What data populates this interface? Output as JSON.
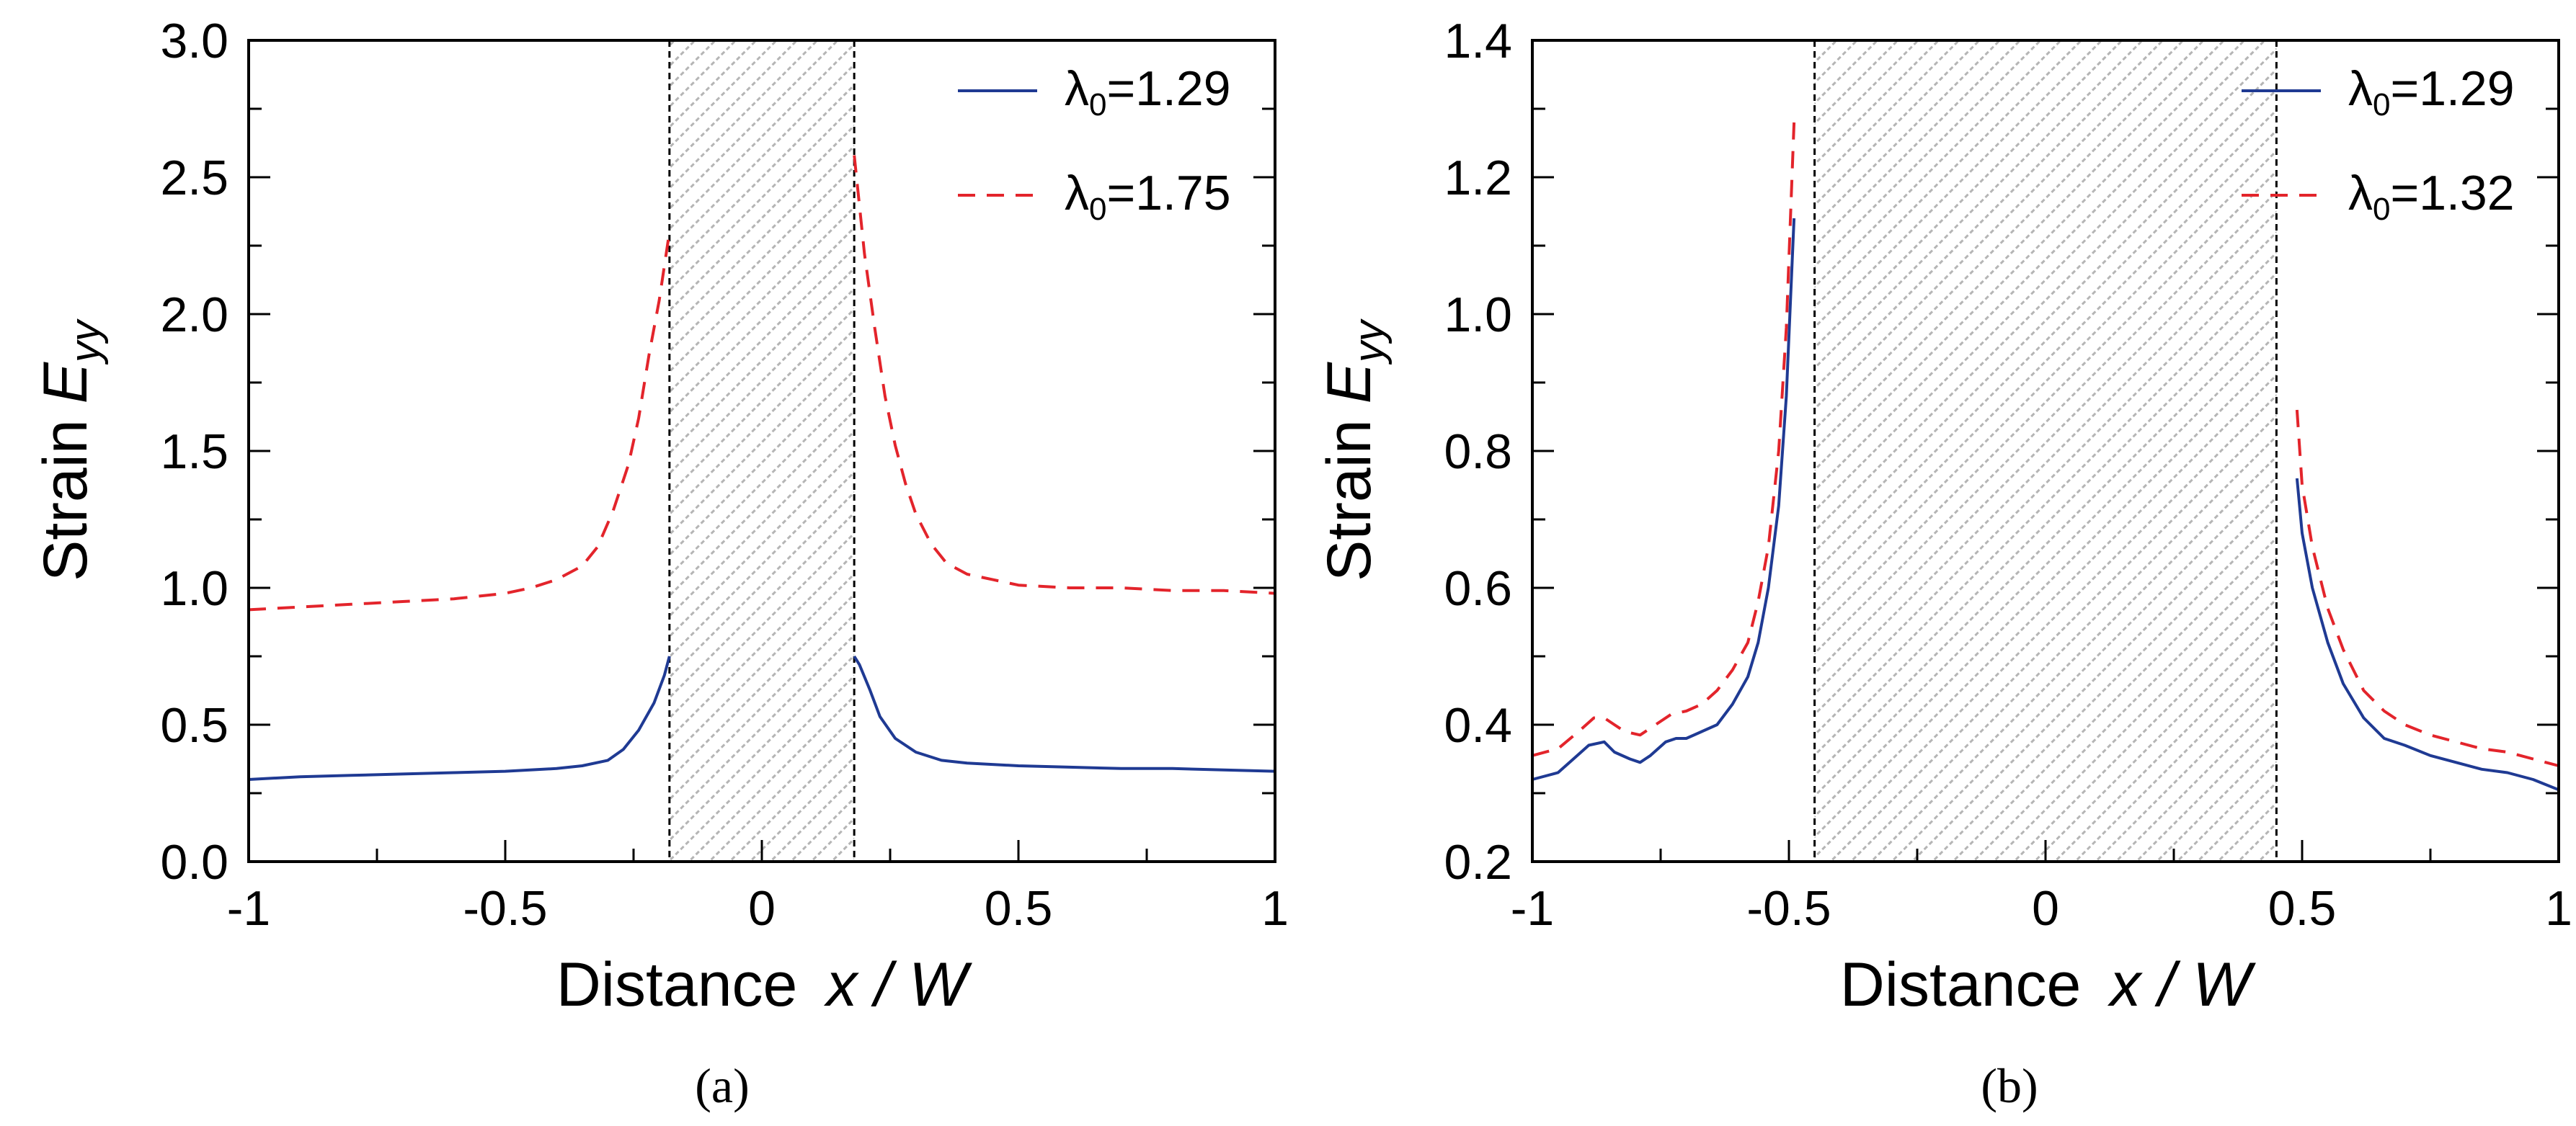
{
  "chart_data": [
    {
      "type": "line",
      "panel_label": "(a)",
      "xlabel": "Distance",
      "xlabel_var": "x / W",
      "ylabel": "Strain",
      "ylabel_var": "E",
      "ylabel_sub": "yy",
      "xlim": [
        -1,
        1
      ],
      "ylim": [
        0,
        3
      ],
      "x_ticks": [
        -1,
        -0.5,
        0,
        0.5,
        1
      ],
      "x_tick_labels": [
        "-1",
        "-0.5",
        "0",
        "0.5",
        "1"
      ],
      "y_ticks": [
        0,
        0.5,
        1,
        1.5,
        2,
        2.5,
        3
      ],
      "y_tick_labels": [
        "0.0",
        "0.5",
        "1.0",
        "1.5",
        "2.0",
        "2.5",
        "3.0"
      ],
      "shaded_region": [
        -0.18,
        0.18
      ],
      "legend_position": "top-right",
      "series": [
        {
          "name": "λ0=1.29",
          "legend_symbol": "λ",
          "legend_sub": "0",
          "legend_value": "=1.29",
          "color": "#1f3a93",
          "style": "solid",
          "segments": [
            [
              [
                -1.0,
                0.3
              ],
              [
                -0.9,
                0.31
              ],
              [
                -0.8,
                0.315
              ],
              [
                -0.7,
                0.32
              ],
              [
                -0.6,
                0.325
              ],
              [
                -0.5,
                0.33
              ],
              [
                -0.4,
                0.34
              ],
              [
                -0.35,
                0.35
              ],
              [
                -0.3,
                0.37
              ],
              [
                -0.27,
                0.41
              ],
              [
                -0.24,
                0.48
              ],
              [
                -0.21,
                0.58
              ],
              [
                -0.19,
                0.68
              ],
              [
                -0.18,
                0.75
              ]
            ],
            [
              [
                0.18,
                0.75
              ],
              [
                0.19,
                0.72
              ],
              [
                0.21,
                0.63
              ],
              [
                0.23,
                0.53
              ],
              [
                0.26,
                0.45
              ],
              [
                0.3,
                0.4
              ],
              [
                0.35,
                0.37
              ],
              [
                0.4,
                0.36
              ],
              [
                0.5,
                0.35
              ],
              [
                0.6,
                0.345
              ],
              [
                0.7,
                0.34
              ],
              [
                0.8,
                0.34
              ],
              [
                0.9,
                0.335
              ],
              [
                1.0,
                0.33
              ]
            ]
          ]
        },
        {
          "name": "λ0=1.75",
          "legend_symbol": "λ",
          "legend_sub": "0",
          "legend_value": "=1.75",
          "color": "#e3242b",
          "style": "dashed",
          "segments": [
            [
              [
                -1.0,
                0.92
              ],
              [
                -0.9,
                0.93
              ],
              [
                -0.8,
                0.94
              ],
              [
                -0.7,
                0.95
              ],
              [
                -0.6,
                0.96
              ],
              [
                -0.5,
                0.98
              ],
              [
                -0.45,
                1.0
              ],
              [
                -0.4,
                1.03
              ],
              [
                -0.35,
                1.08
              ],
              [
                -0.32,
                1.15
              ],
              [
                -0.29,
                1.28
              ],
              [
                -0.26,
                1.45
              ],
              [
                -0.24,
                1.62
              ],
              [
                -0.22,
                1.85
              ],
              [
                -0.2,
                2.05
              ],
              [
                -0.18,
                2.3
              ]
            ],
            [
              [
                0.18,
                2.58
              ],
              [
                0.19,
                2.4
              ],
              [
                0.2,
                2.22
              ],
              [
                0.22,
                1.95
              ],
              [
                0.24,
                1.7
              ],
              [
                0.26,
                1.52
              ],
              [
                0.28,
                1.38
              ],
              [
                0.3,
                1.27
              ],
              [
                0.33,
                1.16
              ],
              [
                0.36,
                1.09
              ],
              [
                0.4,
                1.05
              ],
              [
                0.45,
                1.03
              ],
              [
                0.5,
                1.01
              ],
              [
                0.6,
                1.0
              ],
              [
                0.7,
                1.0
              ],
              [
                0.8,
                0.99
              ],
              [
                0.9,
                0.99
              ],
              [
                1.0,
                0.98
              ]
            ]
          ]
        }
      ]
    },
    {
      "type": "line",
      "panel_label": "(b)",
      "xlabel": "Distance",
      "xlabel_var": "x / W",
      "ylabel": "Strain",
      "ylabel_var": "E",
      "ylabel_sub": "yy",
      "xlim": [
        -1,
        1
      ],
      "ylim": [
        0.2,
        1.4
      ],
      "x_ticks": [
        -1,
        -0.5,
        0,
        0.5,
        1
      ],
      "x_tick_labels": [
        "-1",
        "-0.5",
        "0",
        "0.5",
        "1"
      ],
      "y_ticks": [
        0.2,
        0.4,
        0.6,
        0.8,
        1.0,
        1.2,
        1.4
      ],
      "y_tick_labels": [
        "0.2",
        "0.4",
        "0.6",
        "0.8",
        "1.0",
        "1.2",
        "1.4"
      ],
      "shaded_region": [
        -0.45,
        0.45
      ],
      "legend_position": "top-right",
      "series": [
        {
          "name": "λ0=1.29",
          "legend_symbol": "λ",
          "legend_sub": "0",
          "legend_value": "=1.29",
          "color": "#1f3a93",
          "style": "solid",
          "segments": [
            [
              [
                -1.0,
                0.32
              ],
              [
                -0.95,
                0.33
              ],
              [
                -0.92,
                0.35
              ],
              [
                -0.89,
                0.37
              ],
              [
                -0.86,
                0.375
              ],
              [
                -0.84,
                0.36
              ],
              [
                -0.81,
                0.35
              ],
              [
                -0.79,
                0.345
              ],
              [
                -0.77,
                0.355
              ],
              [
                -0.74,
                0.375
              ],
              [
                -0.72,
                0.38
              ],
              [
                -0.7,
                0.38
              ],
              [
                -0.67,
                0.39
              ],
              [
                -0.64,
                0.4
              ],
              [
                -0.61,
                0.43
              ],
              [
                -0.58,
                0.47
              ],
              [
                -0.56,
                0.52
              ],
              [
                -0.54,
                0.6
              ],
              [
                -0.52,
                0.72
              ],
              [
                -0.505,
                0.88
              ],
              [
                -0.49,
                1.14
              ]
            ],
            [
              [
                0.49,
                0.76
              ],
              [
                0.5,
                0.68
              ],
              [
                0.52,
                0.6
              ],
              [
                0.55,
                0.52
              ],
              [
                0.58,
                0.46
              ],
              [
                0.62,
                0.41
              ],
              [
                0.66,
                0.38
              ],
              [
                0.7,
                0.37
              ],
              [
                0.75,
                0.355
              ],
              [
                0.8,
                0.345
              ],
              [
                0.85,
                0.335
              ],
              [
                0.9,
                0.33
              ],
              [
                0.95,
                0.32
              ],
              [
                1.0,
                0.305
              ]
            ]
          ]
        },
        {
          "name": "λ0=1.32",
          "legend_symbol": "λ",
          "legend_sub": "0",
          "legend_value": "=1.32",
          "color": "#e3242b",
          "style": "dashed",
          "segments": [
            [
              [
                -1.0,
                0.355
              ],
              [
                -0.95,
                0.365
              ],
              [
                -0.91,
                0.39
              ],
              [
                -0.88,
                0.41
              ],
              [
                -0.86,
                0.41
              ],
              [
                -0.84,
                0.4
              ],
              [
                -0.82,
                0.39
              ],
              [
                -0.79,
                0.385
              ],
              [
                -0.76,
                0.4
              ],
              [
                -0.73,
                0.415
              ],
              [
                -0.7,
                0.42
              ],
              [
                -0.67,
                0.43
              ],
              [
                -0.64,
                0.45
              ],
              [
                -0.61,
                0.48
              ],
              [
                -0.58,
                0.52
              ],
              [
                -0.56,
                0.58
              ],
              [
                -0.54,
                0.66
              ],
              [
                -0.52,
                0.8
              ],
              [
                -0.505,
                0.98
              ],
              [
                -0.49,
                1.28
              ]
            ],
            [
              [
                0.49,
                0.86
              ],
              [
                0.5,
                0.75
              ],
              [
                0.52,
                0.66
              ],
              [
                0.55,
                0.57
              ],
              [
                0.58,
                0.51
              ],
              [
                0.62,
                0.45
              ],
              [
                0.66,
                0.42
              ],
              [
                0.7,
                0.4
              ],
              [
                0.75,
                0.385
              ],
              [
                0.8,
                0.375
              ],
              [
                0.85,
                0.365
              ],
              [
                0.9,
                0.36
              ],
              [
                0.95,
                0.35
              ],
              [
                1.0,
                0.34
              ]
            ]
          ]
        }
      ]
    }
  ]
}
